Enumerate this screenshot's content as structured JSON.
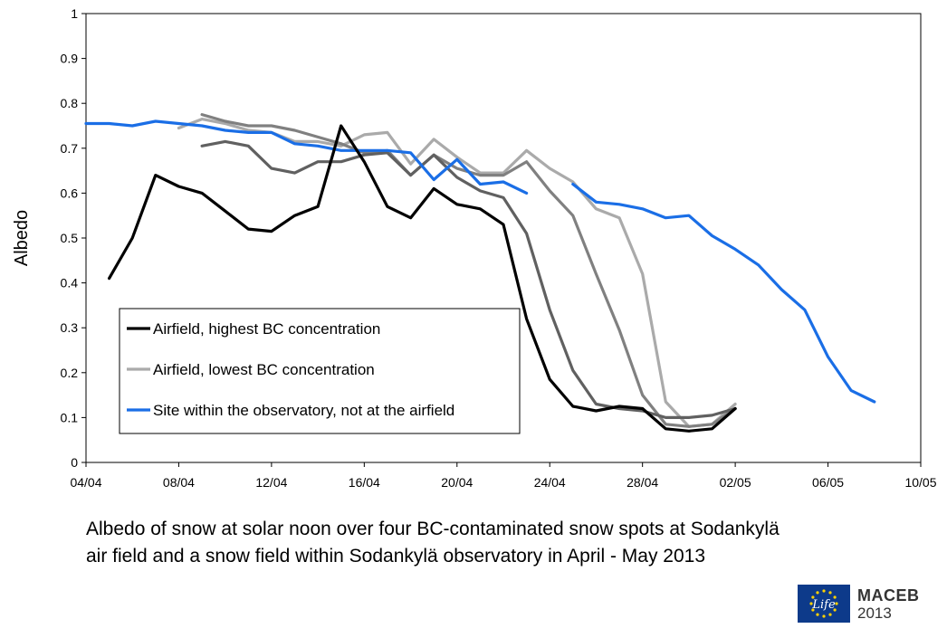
{
  "chart_data": {
    "type": "line",
    "title": "",
    "xlabel": "",
    "ylabel": "Albedo",
    "ylim": [
      0,
      1
    ],
    "yticks": [
      "0",
      "0.1",
      "0.2",
      "0.3",
      "0.4",
      "0.5",
      "0.6",
      "0.7",
      "0.8",
      "0.9",
      "1"
    ],
    "xlim": [
      "2013-04-04",
      "2013-05-10"
    ],
    "xticks": [
      "04/04",
      "08/04",
      "12/04",
      "16/04",
      "20/04",
      "24/04",
      "28/04",
      "02/05",
      "06/05",
      "10/05"
    ],
    "grid": false,
    "legend_position": "lower-left",
    "series": [
      {
        "name": "Airfield, highest BC concentration",
        "color": "#000000",
        "in_legend": true,
        "points": [
          [
            "2013-04-05",
            0.41
          ],
          [
            "2013-04-06",
            0.5
          ],
          [
            "2013-04-07",
            0.64
          ],
          [
            "2013-04-08",
            0.615
          ],
          [
            "2013-04-09",
            0.6
          ],
          [
            "2013-04-10",
            0.56
          ],
          [
            "2013-04-11",
            0.52
          ],
          [
            "2013-04-12",
            0.515
          ],
          [
            "2013-04-13",
            0.55
          ],
          [
            "2013-04-14",
            0.57
          ],
          [
            "2013-04-15",
            0.75
          ],
          [
            "2013-04-16",
            0.67
          ],
          [
            "2013-04-17",
            0.57
          ],
          [
            "2013-04-18",
            0.545
          ],
          [
            "2013-04-19",
            0.61
          ],
          [
            "2013-04-20",
            0.575
          ],
          [
            "2013-04-21",
            0.565
          ],
          [
            "2013-04-22",
            0.53
          ],
          [
            "2013-04-23",
            0.32
          ],
          [
            "2013-04-24",
            0.185
          ],
          [
            "2013-04-25",
            0.125
          ],
          [
            "2013-04-26",
            0.115
          ],
          [
            "2013-04-27",
            0.125
          ],
          [
            "2013-04-28",
            0.12
          ],
          [
            "2013-04-29",
            0.075
          ],
          [
            "2013-04-30",
            0.07
          ],
          [
            "2013-05-01",
            0.075
          ],
          [
            "2013-05-02",
            0.12
          ]
        ]
      },
      {
        "name": "Airfield, lowest BC concentration",
        "color": "#aaaaaa",
        "in_legend": true,
        "points": [
          [
            "2013-04-08",
            0.745
          ],
          [
            "2013-04-09",
            0.765
          ],
          [
            "2013-04-10",
            0.755
          ],
          [
            "2013-04-11",
            0.74
          ],
          [
            "2013-04-12",
            0.735
          ],
          [
            "2013-04-13",
            0.715
          ],
          [
            "2013-04-14",
            0.715
          ],
          [
            "2013-04-15",
            0.705
          ],
          [
            "2013-04-16",
            0.73
          ],
          [
            "2013-04-17",
            0.735
          ],
          [
            "2013-04-18",
            0.665
          ],
          [
            "2013-04-19",
            0.72
          ],
          [
            "2013-04-20",
            0.68
          ],
          [
            "2013-04-21",
            0.645
          ],
          [
            "2013-04-22",
            0.645
          ],
          [
            "2013-04-23",
            0.695
          ],
          [
            "2013-04-24",
            0.655
          ],
          [
            "2013-04-25",
            0.625
          ],
          [
            "2013-04-26",
            0.565
          ],
          [
            "2013-04-27",
            0.545
          ],
          [
            "2013-04-28",
            0.42
          ],
          [
            "2013-04-29",
            0.135
          ],
          [
            "2013-04-30",
            0.08
          ],
          [
            "2013-05-01",
            0.085
          ],
          [
            "2013-05-02",
            0.13
          ]
        ]
      },
      {
        "name": "",
        "color": "#808080",
        "in_legend": false,
        "points": [
          [
            "2013-04-09",
            0.775
          ],
          [
            "2013-04-10",
            0.76
          ],
          [
            "2013-04-11",
            0.75
          ],
          [
            "2013-04-12",
            0.75
          ],
          [
            "2013-04-13",
            0.74
          ],
          [
            "2013-04-14",
            0.725
          ],
          [
            "2013-04-15",
            0.71
          ],
          [
            "2013-04-16",
            0.69
          ],
          [
            "2013-04-17",
            0.695
          ],
          [
            "2013-04-18",
            0.64
          ],
          [
            "2013-04-19",
            0.685
          ],
          [
            "2013-04-20",
            0.655
          ],
          [
            "2013-04-21",
            0.64
          ],
          [
            "2013-04-22",
            0.64
          ],
          [
            "2013-04-23",
            0.67
          ],
          [
            "2013-04-24",
            0.605
          ],
          [
            "2013-04-25",
            0.55
          ],
          [
            "2013-04-26",
            0.42
          ],
          [
            "2013-04-27",
            0.295
          ],
          [
            "2013-04-28",
            0.15
          ],
          [
            "2013-04-29",
            0.085
          ],
          [
            "2013-04-30",
            0.08
          ],
          [
            "2013-05-01",
            0.085
          ],
          [
            "2013-05-02",
            0.12
          ]
        ]
      },
      {
        "name": "",
        "color": "#606060",
        "in_legend": false,
        "points": [
          [
            "2013-04-09",
            0.705
          ],
          [
            "2013-04-10",
            0.715
          ],
          [
            "2013-04-11",
            0.705
          ],
          [
            "2013-04-12",
            0.655
          ],
          [
            "2013-04-13",
            0.645
          ],
          [
            "2013-04-14",
            0.67
          ],
          [
            "2013-04-15",
            0.67
          ],
          [
            "2013-04-16",
            0.685
          ],
          [
            "2013-04-17",
            0.69
          ],
          [
            "2013-04-18",
            0.64
          ],
          [
            "2013-04-19",
            0.685
          ],
          [
            "2013-04-20",
            0.635
          ],
          [
            "2013-04-21",
            0.605
          ],
          [
            "2013-04-22",
            0.59
          ],
          [
            "2013-04-23",
            0.51
          ],
          [
            "2013-04-24",
            0.34
          ],
          [
            "2013-04-25",
            0.205
          ],
          [
            "2013-04-26",
            0.13
          ],
          [
            "2013-04-27",
            0.12
          ],
          [
            "2013-04-28",
            0.115
          ],
          [
            "2013-04-29",
            0.1
          ],
          [
            "2013-04-30",
            0.1
          ],
          [
            "2013-05-01",
            0.105
          ],
          [
            "2013-05-02",
            0.12
          ]
        ]
      },
      {
        "name": "Site within the observatory, not at the airfield",
        "color": "#1a6ee6",
        "in_legend": true,
        "segments": [
          [
            [
              "2013-04-04",
              0.755
            ],
            [
              "2013-04-05",
              0.755
            ],
            [
              "2013-04-06",
              0.75
            ],
            [
              "2013-04-07",
              0.76
            ],
            [
              "2013-04-08",
              0.755
            ],
            [
              "2013-04-09",
              0.75
            ],
            [
              "2013-04-10",
              0.74
            ],
            [
              "2013-04-11",
              0.735
            ],
            [
              "2013-04-12",
              0.735
            ],
            [
              "2013-04-13",
              0.71
            ],
            [
              "2013-04-14",
              0.705
            ],
            [
              "2013-04-15",
              0.695
            ],
            [
              "2013-04-16",
              0.695
            ],
            [
              "2013-04-17",
              0.695
            ],
            [
              "2013-04-18",
              0.69
            ],
            [
              "2013-04-19",
              0.63
            ],
            [
              "2013-04-20",
              0.675
            ],
            [
              "2013-04-21",
              0.62
            ],
            [
              "2013-04-22",
              0.625
            ],
            [
              "2013-04-23",
              0.6
            ]
          ],
          [
            [
              "2013-04-25",
              0.62
            ],
            [
              "2013-04-26",
              0.58
            ],
            [
              "2013-04-27",
              0.575
            ],
            [
              "2013-04-28",
              0.565
            ],
            [
              "2013-04-29",
              0.545
            ],
            [
              "2013-04-30",
              0.55
            ],
            [
              "2013-05-01",
              0.505
            ],
            [
              "2013-05-02",
              0.475
            ],
            [
              "2013-05-03",
              0.44
            ],
            [
              "2013-05-04",
              0.385
            ],
            [
              "2013-05-05",
              0.34
            ],
            [
              "2013-05-06",
              0.235
            ],
            [
              "2013-05-07",
              0.16
            ],
            [
              "2013-05-08",
              0.135
            ]
          ]
        ]
      }
    ]
  },
  "caption": {
    "line1": "Albedo of snow at solar noon over four BC-contaminated snow spots  at Sodankylä",
    "line2": "air field and a snow field within Sodankylä observatory in April - May 2013"
  },
  "logo": {
    "mark_text": "Life",
    "name": "MACEB",
    "year": "2013",
    "flag_color": "#0d3a8a",
    "star_color": "#ffd200"
  }
}
